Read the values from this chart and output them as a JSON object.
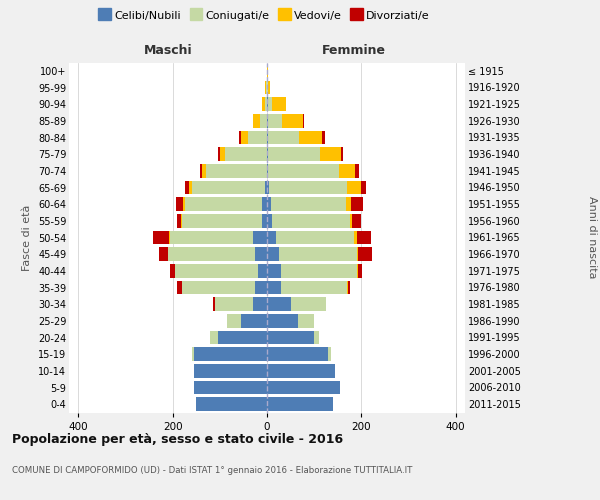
{
  "age_groups": [
    "0-4",
    "5-9",
    "10-14",
    "15-19",
    "20-24",
    "25-29",
    "30-34",
    "35-39",
    "40-44",
    "45-49",
    "50-54",
    "55-59",
    "60-64",
    "65-69",
    "70-74",
    "75-79",
    "80-84",
    "85-89",
    "90-94",
    "95-99",
    "100+"
  ],
  "birth_years": [
    "2011-2015",
    "2006-2010",
    "2001-2005",
    "1996-2000",
    "1991-1995",
    "1986-1990",
    "1981-1985",
    "1976-1980",
    "1971-1975",
    "1966-1970",
    "1961-1965",
    "1956-1960",
    "1951-1955",
    "1946-1950",
    "1941-1945",
    "1936-1940",
    "1931-1935",
    "1926-1930",
    "1921-1925",
    "1916-1920",
    "≤ 1915"
  ],
  "males": {
    "celibi": [
      150,
      155,
      155,
      155,
      105,
      55,
      30,
      25,
      20,
      25,
      30,
      10,
      10,
      5,
      0,
      0,
      0,
      0,
      0,
      0,
      0
    ],
    "coniugati": [
      0,
      0,
      0,
      5,
      15,
      30,
      80,
      155,
      175,
      185,
      175,
      170,
      165,
      155,
      130,
      90,
      40,
      15,
      5,
      2,
      0
    ],
    "vedovi": [
      0,
      0,
      0,
      0,
      0,
      0,
      0,
      0,
      1,
      1,
      2,
      2,
      3,
      5,
      8,
      10,
      15,
      15,
      5,
      2,
      0
    ],
    "divorziati": [
      0,
      0,
      0,
      0,
      0,
      0,
      5,
      10,
      10,
      18,
      35,
      8,
      15,
      8,
      5,
      5,
      5,
      0,
      0,
      0,
      0
    ]
  },
  "females": {
    "nubili": [
      140,
      155,
      145,
      130,
      100,
      65,
      50,
      30,
      30,
      25,
      20,
      10,
      8,
      5,
      2,
      2,
      2,
      2,
      2,
      0,
      0
    ],
    "coniugate": [
      0,
      0,
      0,
      5,
      10,
      35,
      75,
      140,
      160,
      165,
      165,
      165,
      160,
      165,
      150,
      110,
      65,
      30,
      8,
      2,
      0
    ],
    "vedove": [
      0,
      0,
      0,
      0,
      0,
      0,
      0,
      2,
      2,
      3,
      5,
      5,
      10,
      30,
      35,
      45,
      50,
      45,
      30,
      5,
      2
    ],
    "divorziate": [
      0,
      0,
      0,
      0,
      0,
      0,
      0,
      5,
      10,
      30,
      30,
      20,
      25,
      10,
      8,
      5,
      5,
      2,
      0,
      0,
      0
    ]
  },
  "colors": {
    "celibi": "#4e7db5",
    "coniugati": "#c5d9a4",
    "vedovi": "#ffc000",
    "divorziati": "#c00000"
  },
  "xlim": 420,
  "title": "Popolazione per età, sesso e stato civile - 2016",
  "subtitle": "COMUNE DI CAMPOFORMIDO (UD) - Dati ISTAT 1° gennaio 2016 - Elaborazione TUTTITALIA.IT",
  "xlabel_left": "Maschi",
  "xlabel_right": "Femmine",
  "ylabel_left": "Fasce di età",
  "ylabel_right": "Anni di nascita",
  "bg_color": "#f0f0f0",
  "plot_bg_color": "#ffffff",
  "legend_labels": [
    "Celibi/Nubili",
    "Coniugati/e",
    "Vedovi/e",
    "Divorziati/e"
  ]
}
